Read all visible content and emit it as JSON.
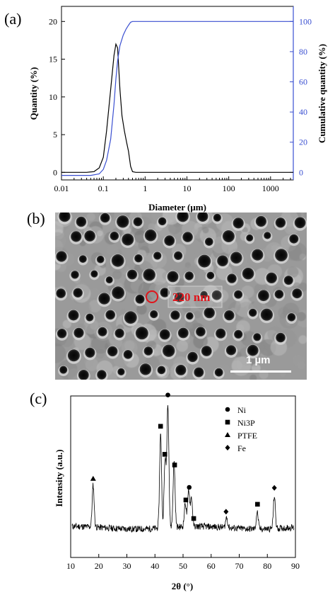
{
  "figure": {
    "panels": [
      {
        "letter": "(a)"
      },
      {
        "letter": "(b)"
      },
      {
        "letter": "(c)"
      }
    ]
  },
  "chart_data": [
    {
      "type": "line",
      "panel": "(a)",
      "xlabel": "Diameter (μm)",
      "ylabel": "Quantity (%)",
      "y2label": "Cumulative quantity (%)",
      "xscale": "log",
      "xlim": [
        0.01,
        3500
      ],
      "ylim": [
        -1,
        22
      ],
      "y2lim": [
        -5,
        110
      ],
      "xticks": [
        "0.01",
        "0.1",
        "1",
        "10",
        "100",
        "1000"
      ],
      "xtick_values": [
        0.01,
        0.1,
        1,
        10,
        100,
        1000
      ],
      "yticks": [
        "0",
        "5",
        "10",
        "15",
        "20"
      ],
      "ytick_values": [
        0,
        5,
        10,
        15,
        20
      ],
      "y2ticks": [
        "0",
        "20",
        "40",
        "60",
        "80",
        "100"
      ],
      "y2tick_values": [
        0,
        20,
        40,
        60,
        80,
        100
      ],
      "series": [
        {
          "color": "#000000",
          "axis": "left",
          "x": [
            0.01,
            0.04,
            0.06,
            0.08,
            0.1,
            0.12,
            0.15,
            0.18,
            0.2,
            0.22,
            0.25,
            0.28,
            0.32,
            0.36,
            0.4,
            0.45,
            0.5,
            0.6,
            1,
            10,
            100,
            1000,
            3500
          ],
          "y": [
            0,
            0,
            0.1,
            0.6,
            2.0,
            5.5,
            11.0,
            15.5,
            17.0,
            16.5,
            11.0,
            7.5,
            5.5,
            4.0,
            2.8,
            0.8,
            0.1,
            0,
            0,
            0,
            0,
            0,
            0
          ]
        },
        {
          "color": "#3a4fd1",
          "axis": "right",
          "x": [
            0.01,
            0.05,
            0.08,
            0.1,
            0.12,
            0.15,
            0.18,
            0.2,
            0.22,
            0.25,
            0.3,
            0.35,
            0.4,
            0.45,
            0.5,
            1,
            10,
            100,
            1000,
            3500
          ],
          "y": [
            -2,
            -2,
            -1,
            2,
            8,
            22,
            45,
            62,
            74,
            84,
            91,
            95,
            97.5,
            99.5,
            100,
            100,
            100,
            100,
            100,
            100
          ]
        }
      ]
    },
    {
      "type": "scatter",
      "panel": "(c)",
      "xlabel": "2θ (°)",
      "ylabel": "Intensity (a.u.)",
      "xlim": [
        10,
        90
      ],
      "xticks": [
        "10",
        "20",
        "30",
        "40",
        "50",
        "60",
        "70",
        "80",
        "90"
      ],
      "xtick_values": [
        10,
        20,
        30,
        40,
        50,
        60,
        70,
        80,
        90
      ],
      "pattern_color": "#000000",
      "peaks": [
        {
          "x": 18.0,
          "h": 0.32
        },
        {
          "x": 42.0,
          "h": 0.72
        },
        {
          "x": 43.6,
          "h": 0.52
        },
        {
          "x": 44.6,
          "h": 0.95
        },
        {
          "x": 46.8,
          "h": 0.5
        },
        {
          "x": 50.8,
          "h": 0.18
        },
        {
          "x": 52.0,
          "h": 0.28
        },
        {
          "x": 53.0,
          "h": 0.22
        },
        {
          "x": 65.5,
          "h": 0.08
        },
        {
          "x": 76.4,
          "h": 0.13
        },
        {
          "x": 82.5,
          "h": 0.25
        }
      ],
      "markers": [
        {
          "x": 18.0,
          "symbol": "triangle"
        },
        {
          "x": 42.0,
          "symbol": "square"
        },
        {
          "x": 43.5,
          "symbol": "square"
        },
        {
          "x": 44.6,
          "symbol": "circle"
        },
        {
          "x": 47.0,
          "symbol": "square"
        },
        {
          "x": 51.0,
          "symbol": "square"
        },
        {
          "x": 52.2,
          "symbol": "circle"
        },
        {
          "x": 53.8,
          "symbol": "square"
        },
        {
          "x": 65.3,
          "symbol": "diamond"
        },
        {
          "x": 76.5,
          "symbol": "square"
        },
        {
          "x": 82.5,
          "symbol": "diamond"
        }
      ],
      "legend": [
        {
          "name": "Ni",
          "symbol": "circle"
        },
        {
          "name": "Ni3P",
          "symbol": "square"
        },
        {
          "name": "PTFE",
          "symbol": "triangle"
        },
        {
          "name": "Fe",
          "symbol": "diamond"
        }
      ]
    }
  ],
  "micrograph": {
    "annotation": "220 nm",
    "scale_bar": "1 µm",
    "annotation_color": "#e0151b"
  }
}
